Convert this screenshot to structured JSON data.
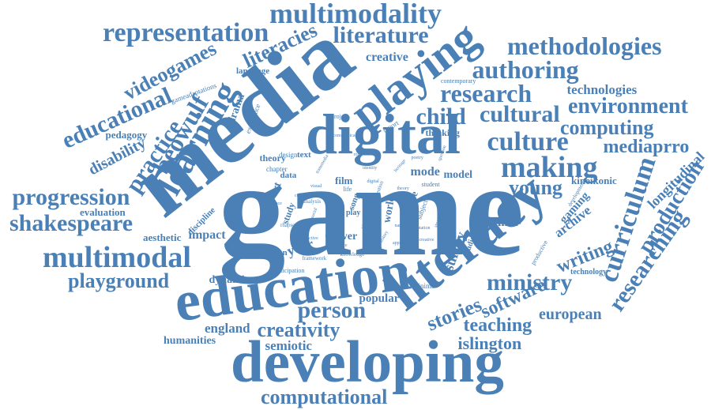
{
  "cloud": {
    "color": "#4a80b6",
    "background": "#ffffff",
    "words": [
      "game",
      "media",
      "digital",
      "education",
      "literacy",
      "developing",
      "playing",
      "multimodality",
      "representation",
      "literature",
      "methodologies",
      "authoring",
      "research",
      "cultural",
      "culture",
      "making",
      "child",
      "environment",
      "computing",
      "mediaprro",
      "curriculum",
      "researching",
      "production",
      "longitudinal",
      "learning",
      "beowulf",
      "practice",
      "educational",
      "videogames",
      "literacies",
      "creative",
      "technologies",
      "pedagogy",
      "disability",
      "progression",
      "shakespeare",
      "evaluation",
      "multimodal",
      "playground",
      "person",
      "creativity",
      "england",
      "humanities",
      "semiotic",
      "computational",
      "stories",
      "software",
      "european",
      "teaching",
      "islington",
      "ministry",
      "writing",
      "gaming",
      "archive",
      "hamlet",
      "young",
      "kineikonic",
      "survey",
      "mode",
      "model",
      "tower",
      "year",
      "popular",
      "dynamic",
      "impact",
      "aesthetic",
      "drama",
      "language",
      "theory",
      "film",
      "text",
      "data",
      "design",
      "animation",
      "thinking",
      "technology",
      "gameadaptations",
      "contemporary",
      "experience",
      "project",
      "report",
      "chapter",
      "art",
      "life",
      "study",
      "song",
      "play",
      "world",
      "value",
      "subject",
      "student",
      "discipline",
      "participation",
      "machinima",
      "productive",
      "studies",
      "development",
      "framework",
      "knowledge",
      "approach",
      "question",
      "analysis",
      "rhapsody",
      "communication",
      "transmedia",
      "identity",
      "question",
      "visual",
      "heritage",
      "classroom",
      "virtual",
      "narrative",
      "adaptation",
      "space",
      "history",
      "genre",
      "poetry",
      "social",
      "role",
      "digital",
      "creative",
      "theory",
      "context",
      "structure",
      "practice",
      "interactive",
      "reading",
      "performance",
      "epic"
    ]
  }
}
